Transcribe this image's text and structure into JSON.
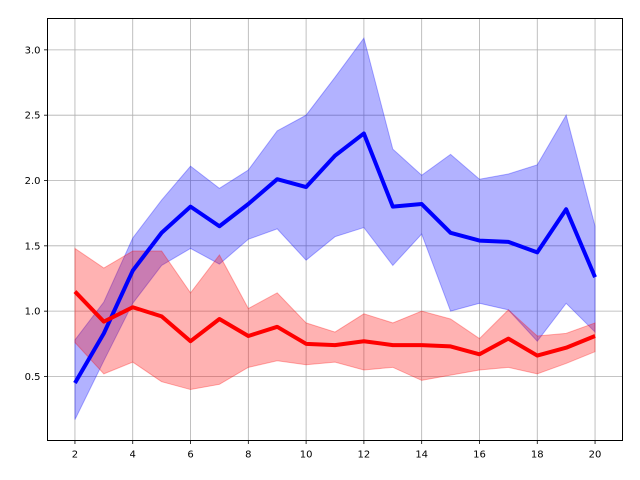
{
  "chart_data": {
    "type": "line",
    "title": "",
    "xlabel": "",
    "ylabel": "",
    "xlim": [
      1.05,
      20.95
    ],
    "ylim": [
      0.01,
      3.24
    ],
    "grid": true,
    "x_ticks": [
      2,
      4,
      6,
      8,
      10,
      12,
      14,
      16,
      18,
      20
    ],
    "y_ticks": [
      0.5,
      1.0,
      1.5,
      2.0,
      2.5,
      3.0
    ],
    "x_tick_labels": [
      "2",
      "4",
      "6",
      "8",
      "10",
      "12",
      "14",
      "16",
      "18",
      "20"
    ],
    "y_tick_labels": [
      "0.5",
      "1.0",
      "1.5",
      "2.0",
      "2.5",
      "3.0"
    ],
    "x": [
      2,
      3,
      4,
      5,
      6,
      7,
      8,
      9,
      10,
      11,
      12,
      13,
      14,
      15,
      16,
      17,
      18,
      19,
      20
    ],
    "series": [
      {
        "color": "#0000ff",
        "band_color": "#0000ff",
        "values": [
          0.45,
          0.83,
          1.31,
          1.6,
          1.8,
          1.65,
          1.82,
          2.01,
          1.95,
          2.19,
          2.36,
          1.8,
          1.82,
          1.6,
          1.54,
          1.53,
          1.45,
          1.78,
          1.26
        ],
        "lower": [
          0.17,
          0.62,
          1.06,
          1.35,
          1.48,
          1.36,
          1.55,
          1.63,
          1.39,
          1.57,
          1.64,
          1.35,
          1.59,
          1.0,
          1.06,
          1.01,
          0.77,
          1.06,
          0.84
        ],
        "upper": [
          0.78,
          1.07,
          1.56,
          1.85,
          2.11,
          1.94,
          2.08,
          2.38,
          2.5,
          2.79,
          3.09,
          2.24,
          2.04,
          2.2,
          2.01,
          2.05,
          2.12,
          2.5,
          1.65
        ]
      },
      {
        "color": "#ff0000",
        "band_color": "#ff0000",
        "values": [
          1.15,
          0.92,
          1.03,
          0.96,
          0.77,
          0.94,
          0.81,
          0.88,
          0.75,
          0.74,
          0.77,
          0.74,
          0.74,
          0.73,
          0.67,
          0.79,
          0.66,
          0.72,
          0.81
        ],
        "lower": [
          0.76,
          0.52,
          0.61,
          0.46,
          0.4,
          0.44,
          0.57,
          0.62,
          0.59,
          0.61,
          0.55,
          0.57,
          0.47,
          0.51,
          0.55,
          0.57,
          0.52,
          0.6,
          0.69
        ],
        "upper": [
          1.48,
          1.33,
          1.46,
          1.46,
          1.14,
          1.43,
          1.02,
          1.14,
          0.91,
          0.84,
          0.98,
          0.91,
          1.0,
          0.94,
          0.79,
          1.01,
          0.81,
          0.83,
          0.91
        ]
      }
    ]
  }
}
